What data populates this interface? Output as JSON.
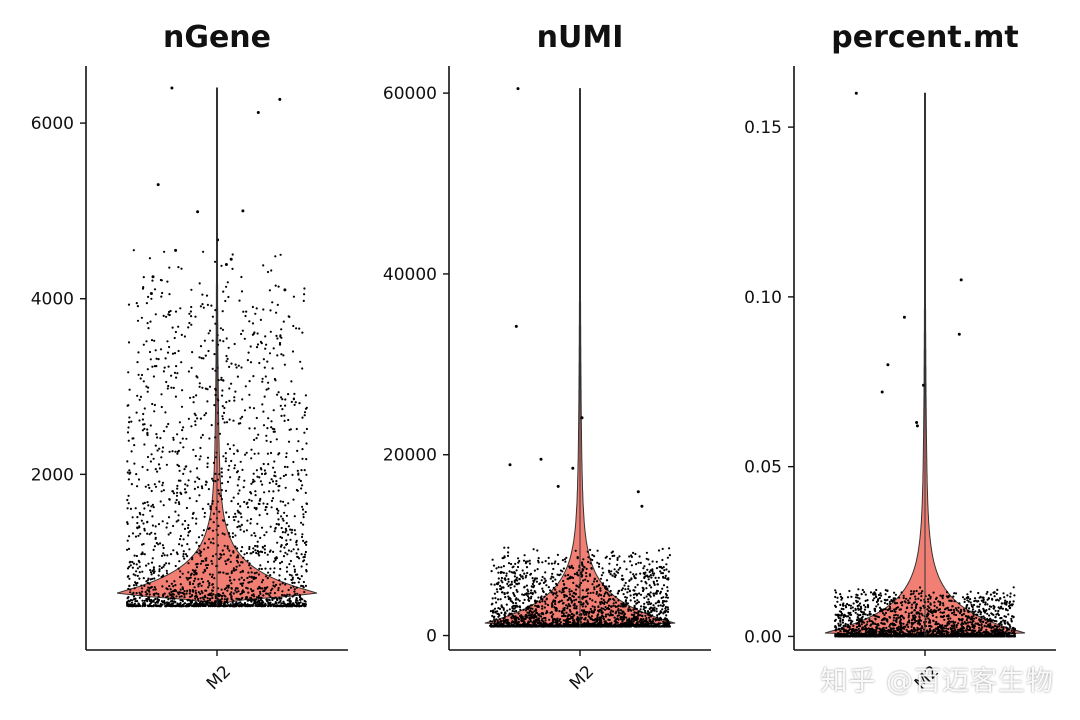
{
  "chart_data": [
    {
      "type": "violin",
      "title": "nGene",
      "categories": [
        "M2"
      ],
      "yticks": [
        2000,
        4000,
        6000
      ],
      "ytick_labels": [
        "2000",
        "4000",
        "6000"
      ],
      "ylim": [
        0,
        6650
      ],
      "distribution": {
        "min": 500,
        "max": 6400,
        "median": 950,
        "mode": 650
      },
      "outliers": [
        6400,
        6270,
        6120,
        5300,
        5000,
        4990,
        4670,
        4550,
        4450,
        4390,
        4250,
        4100,
        4060
      ],
      "fill_color": "#f27f74"
    },
    {
      "type": "violin",
      "title": "nUMI",
      "categories": [
        "M2"
      ],
      "yticks": [
        0,
        20000,
        40000,
        60000
      ],
      "ytick_labels": [
        "0",
        "20000",
        "40000",
        "60000"
      ],
      "ylim": [
        -1600,
        63000
      ],
      "distribution": {
        "min": 1000,
        "max": 60500,
        "median": 2000,
        "mode": 1200
      },
      "outliers": [
        60500,
        34200,
        24100,
        19500,
        18900,
        18500,
        16500,
        15900,
        14300
      ],
      "fill_color": "#f27f74"
    },
    {
      "type": "violin",
      "title": "percent.mt",
      "categories": [
        "M2"
      ],
      "yticks": [
        0.0,
        0.05,
        0.1,
        0.15
      ],
      "ytick_labels": [
        "0.00",
        "0.05",
        "0.10",
        "0.15"
      ],
      "ylim": [
        -0.004,
        0.168
      ],
      "distribution": {
        "min": 0.0,
        "max": 0.16,
        "median": 0.003,
        "mode": 0.001
      },
      "outliers": [
        0.16,
        0.105,
        0.094,
        0.089,
        0.08,
        0.074,
        0.072,
        0.063,
        0.062
      ],
      "fill_color": "#f27f74"
    }
  ],
  "watermark": "知乎 @百迈客生物"
}
